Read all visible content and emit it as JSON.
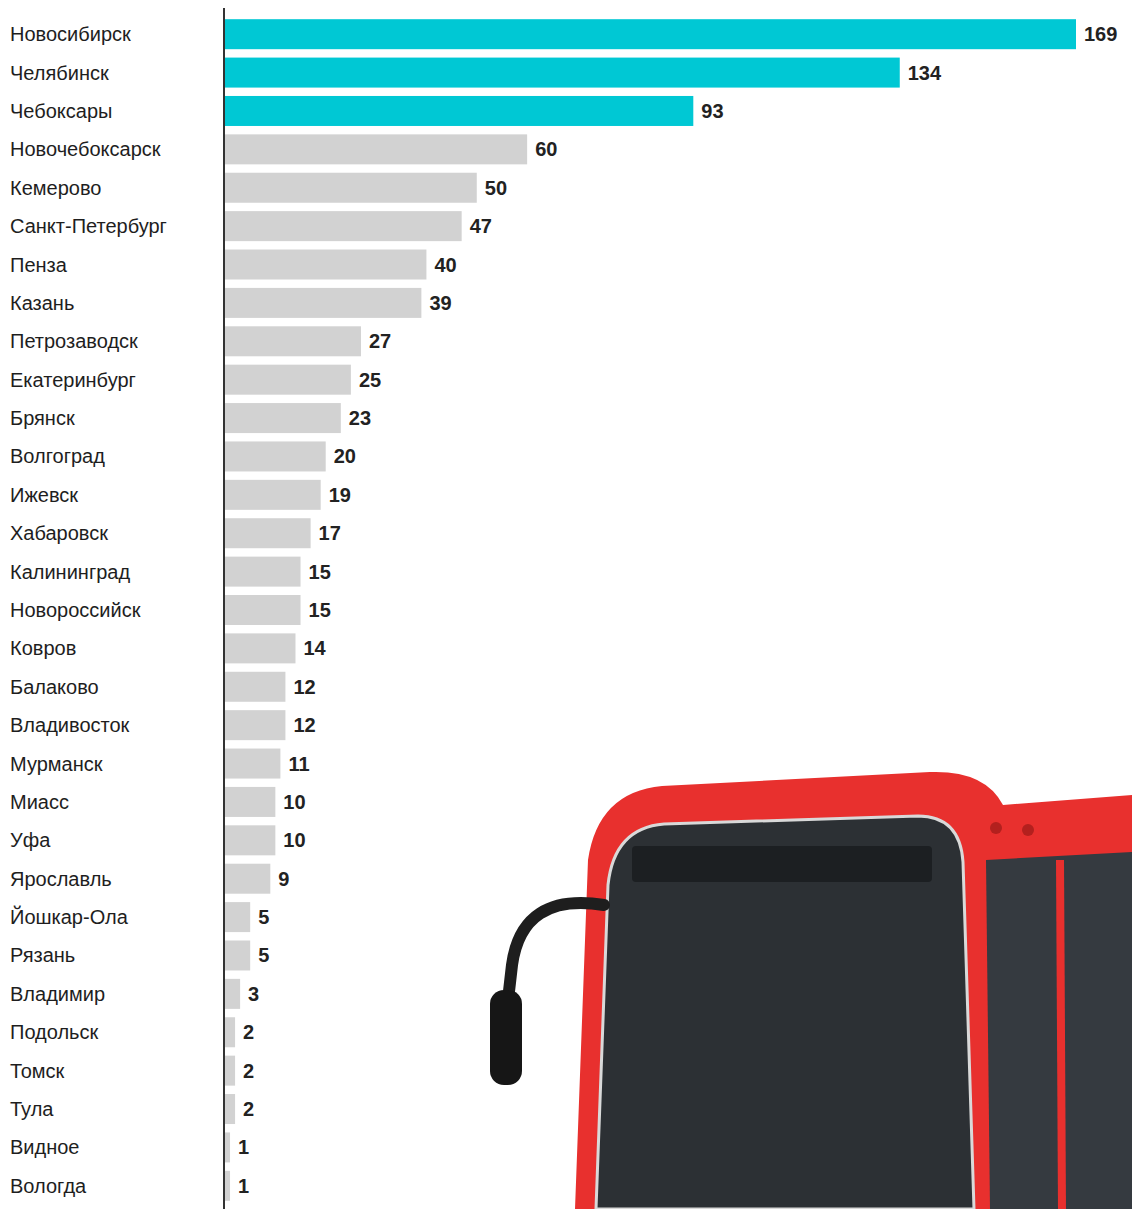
{
  "chart_data": {
    "type": "bar",
    "orientation": "horizontal",
    "categories": [
      "Новосибирск",
      "Челябинск",
      "Чебоксары",
      "Новочебоксарск",
      "Кемерово",
      "Санкт-Петербург",
      "Пенза",
      "Казань",
      "Петрозаводск",
      "Екатеринбург",
      "Брянск",
      "Волгоград",
      "Ижевск",
      "Хабаровск",
      "Калининград",
      "Новороссийск",
      "Ковров",
      "Балаково",
      "Владивосток",
      "Мурманск",
      "Миасс",
      "Уфа",
      "Ярославль",
      "Йошкар-Ола",
      "Рязань",
      "Владимир",
      "Подольск",
      "Томск",
      "Тула",
      "Видное",
      "Вологда"
    ],
    "values": [
      169,
      134,
      93,
      60,
      50,
      47,
      40,
      39,
      27,
      25,
      23,
      20,
      19,
      17,
      15,
      15,
      14,
      12,
      12,
      11,
      10,
      10,
      9,
      5,
      5,
      3,
      2,
      2,
      2,
      1,
      1
    ],
    "colors": [
      "#00c8d4",
      "#00c8d4",
      "#00c8d4",
      "#d2d2d2",
      "#d2d2d2",
      "#d2d2d2",
      "#d2d2d2",
      "#d2d2d2",
      "#d2d2d2",
      "#d2d2d2",
      "#d2d2d2",
      "#d2d2d2",
      "#d2d2d2",
      "#d2d2d2",
      "#d2d2d2",
      "#d2d2d2",
      "#d2d2d2",
      "#d2d2d2",
      "#d2d2d2",
      "#d2d2d2",
      "#d2d2d2",
      "#d2d2d2",
      "#d2d2d2",
      "#d2d2d2",
      "#d2d2d2",
      "#d2d2d2",
      "#d2d2d2",
      "#d2d2d2",
      "#d2d2d2",
      "#d2d2d2",
      "#d2d2d2"
    ],
    "xlim": [
      0,
      169
    ],
    "data_labels": true,
    "tick_labels": "y",
    "grid": false
  }
}
